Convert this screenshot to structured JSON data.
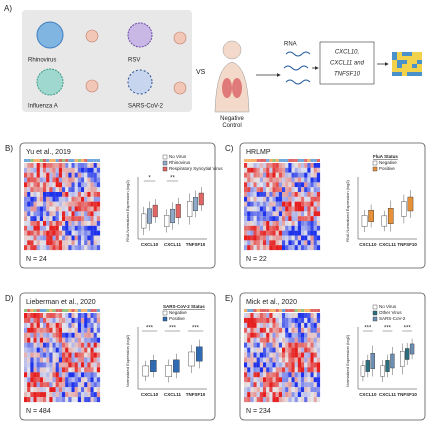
{
  "panel_a": {
    "label": "A)",
    "viruses": [
      "Rhinovirus",
      "RSV",
      "Influenza A",
      "SARS-CoV-2"
    ],
    "vs": "VS",
    "control": "Negative Control",
    "rna": "RNA",
    "genes_box": [
      "CXCL10,",
      "CXCL11 and",
      "TNFSF10"
    ]
  },
  "panels": [
    {
      "label": "B)",
      "title": "Yu et al., 2019",
      "n": "N = 24",
      "y_label": "RNA Normalized Expression (log2)",
      "legend": [
        {
          "name": "No Virus",
          "color": "#ffffff"
        },
        {
          "name": "Rhinovirus",
          "color": "#8fa9c9"
        },
        {
          "name": "Respiratory Syncytial Virus",
          "color": "#e06666"
        }
      ],
      "categories": [
        "CXCL10",
        "CXCL11",
        "TNFSF10"
      ],
      "significance": [
        "*",
        "**"
      ]
    },
    {
      "label": "C)",
      "title": "HRLMP",
      "n": "N = 22",
      "y_label": "RNA Normalized Expression (log2)",
      "legend_title": "FluA Status",
      "legend": [
        {
          "name": "Negative",
          "color": "#ffffff"
        },
        {
          "name": "Positive",
          "color": "#e69138"
        }
      ],
      "categories": [
        "CXCL10",
        "CXCL11",
        "TNFSF10"
      ]
    },
    {
      "label": "D)",
      "title": "Lieberman et al., 2020",
      "n": "N = 484",
      "y_label": "Normalized Expression (log2)",
      "legend_title": "SARS-CoV-2 Status",
      "legend": [
        {
          "name": "Negative",
          "color": "#ffffff"
        },
        {
          "name": "Positive",
          "color": "#2f6bb3"
        }
      ],
      "categories": [
        "CXCL10",
        "CXCL11",
        "TNFSF10"
      ],
      "significance": [
        "***",
        "***",
        "***"
      ]
    },
    {
      "label": "E)",
      "title": "Mick et al., 2020",
      "n": "N = 234",
      "y_label": "Normalized Expression (log2)",
      "legend": [
        {
          "name": "No Virus",
          "color": "#ffffff"
        },
        {
          "name": "Other Virus",
          "color": "#2a6f7f"
        },
        {
          "name": "SARS-CoV-2",
          "color": "#6d8fb3"
        }
      ],
      "categories": [
        "CXCL10",
        "CXCL11",
        "TNFSF10"
      ],
      "significance": [
        "***",
        "***",
        "***"
      ]
    }
  ]
}
